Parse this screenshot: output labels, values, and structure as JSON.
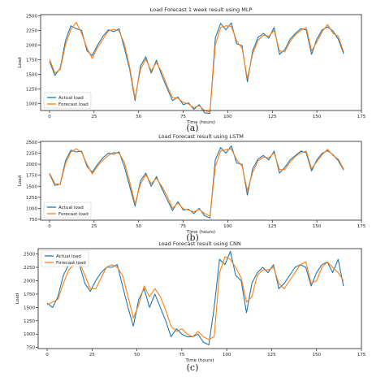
{
  "chart_data": [
    {
      "type": "line",
      "title": "Load Forecast 1 week result using MLP",
      "xlabel": "Time (hours)",
      "ylabel": "Load",
      "caption": "(a)",
      "xlim": [
        -5,
        175
      ],
      "ylim": [
        880,
        2520
      ],
      "xticks": [
        0,
        25,
        50,
        75,
        100,
        125,
        150,
        175
      ],
      "yticks": [
        1000,
        1250,
        1500,
        1750,
        2000,
        2250,
        2500
      ],
      "legend": "lower-left",
      "x": [
        0,
        3,
        6,
        9,
        12,
        15,
        18,
        21,
        24,
        27,
        30,
        33,
        36,
        39,
        42,
        45,
        48,
        51,
        54,
        57,
        60,
        63,
        66,
        69,
        72,
        75,
        78,
        81,
        84,
        87,
        90,
        93,
        96,
        99,
        102,
        105,
        108,
        111,
        114,
        117,
        120,
        123,
        126,
        129,
        132,
        135,
        138,
        141,
        144,
        147,
        150,
        153,
        156,
        159,
        162,
        165
      ],
      "series": [
        {
          "name": "Actual load",
          "color": "#1f77b4",
          "values": [
            1720,
            1480,
            1600,
            2080,
            2330,
            2280,
            2250,
            1900,
            1820,
            2000,
            2150,
            2260,
            2230,
            2280,
            1950,
            1580,
            1050,
            1640,
            1800,
            1520,
            1740,
            1480,
            1260,
            1050,
            1110,
            980,
            1010,
            900,
            980,
            840,
            830,
            2120,
            2370,
            2260,
            2380,
            2020,
            1990,
            1370,
            1900,
            2130,
            2200,
            2120,
            2300,
            1840,
            1920,
            2100,
            2200,
            2280,
            2260,
            1840,
            2100,
            2260,
            2310,
            2240,
            2100,
            1850
          ]
        },
        {
          "name": "Forecast load",
          "color": "#ff7f0e",
          "values": [
            1760,
            1520,
            1580,
            2010,
            2270,
            2390,
            2200,
            1950,
            1770,
            1960,
            2100,
            2240,
            2270,
            2240,
            2020,
            1620,
            1090,
            1580,
            1760,
            1560,
            1700,
            1540,
            1300,
            1100,
            1090,
            1020,
            990,
            930,
            960,
            880,
            850,
            2000,
            2300,
            2330,
            2320,
            2070,
            1950,
            1430,
            1850,
            2080,
            2170,
            2150,
            2250,
            1900,
            1880,
            2060,
            2180,
            2250,
            2300,
            1900,
            2050,
            2230,
            2350,
            2200,
            2150,
            1880
          ]
        }
      ]
    },
    {
      "type": "line",
      "title": "Load Forecast result using LSTM",
      "xlabel": "Time (hours)",
      "ylabel": "Load",
      "caption": "(b)",
      "xlim": [
        -5,
        175
      ],
      "ylim": [
        730,
        2520
      ],
      "xticks": [
        0,
        25,
        50,
        75,
        100,
        125,
        150,
        175
      ],
      "yticks": [
        750,
        1000,
        1250,
        1500,
        1750,
        2000,
        2250,
        2500
      ],
      "legend": "lower-left",
      "x": [
        0,
        3,
        6,
        9,
        12,
        15,
        18,
        21,
        24,
        27,
        30,
        33,
        36,
        39,
        42,
        45,
        48,
        51,
        54,
        57,
        60,
        63,
        66,
        69,
        72,
        75,
        78,
        81,
        84,
        87,
        90,
        93,
        96,
        99,
        102,
        105,
        108,
        111,
        114,
        117,
        120,
        123,
        126,
        129,
        132,
        135,
        138,
        141,
        144,
        147,
        150,
        153,
        156,
        159,
        162,
        165
      ],
      "series": [
        {
          "name": "Actual load",
          "color": "#1f77b4",
          "values": [
            1780,
            1520,
            1550,
            2080,
            2320,
            2280,
            2300,
            1950,
            1820,
            2000,
            2150,
            2250,
            2230,
            2280,
            1950,
            1500,
            1050,
            1620,
            1800,
            1500,
            1720,
            1450,
            1200,
            950,
            1150,
            960,
            980,
            880,
            1000,
            830,
            780,
            2100,
            2380,
            2250,
            2420,
            2030,
            2000,
            1300,
            1900,
            2120,
            2200,
            2100,
            2300,
            1800,
            1930,
            2100,
            2200,
            2300,
            2260,
            1850,
            2100,
            2250,
            2310,
            2220,
            2080,
            1870
          ]
        },
        {
          "name": "Forecast load",
          "color": "#ff7f0e",
          "values": [
            1800,
            1560,
            1540,
            2020,
            2280,
            2350,
            2270,
            2000,
            1780,
            1960,
            2100,
            2200,
            2270,
            2250,
            2050,
            1600,
            1100,
            1550,
            1760,
            1560,
            1680,
            1500,
            1280,
            1000,
            1120,
            990,
            960,
            920,
            980,
            880,
            820,
            1950,
            2300,
            2330,
            2350,
            2100,
            1960,
            1400,
            1820,
            2080,
            2160,
            2150,
            2260,
            1880,
            1880,
            2050,
            2180,
            2260,
            2300,
            1900,
            2060,
            2220,
            2340,
            2200,
            2120,
            1890
          ]
        }
      ]
    },
    {
      "type": "line",
      "title": "Load Forecast result using CNN",
      "xlabel": "Time (hours)",
      "ylabel": "Load",
      "caption": "(c)",
      "xlim": [
        -5,
        175
      ],
      "ylim": [
        730,
        2600
      ],
      "xticks": [
        0,
        25,
        50,
        75,
        100,
        125,
        150,
        175
      ],
      "yticks": [
        750,
        1000,
        1250,
        1500,
        1750,
        2000,
        2250,
        2500
      ],
      "legend": "upper-left",
      "x": [
        0,
        3,
        6,
        9,
        12,
        15,
        18,
        21,
        24,
        27,
        30,
        33,
        36,
        39,
        42,
        45,
        48,
        51,
        54,
        57,
        60,
        63,
        66,
        69,
        72,
        75,
        78,
        81,
        84,
        87,
        90,
        93,
        96,
        99,
        102,
        105,
        108,
        111,
        114,
        117,
        120,
        123,
        126,
        129,
        132,
        135,
        138,
        141,
        144,
        147,
        150,
        153,
        156,
        159,
        162,
        165
      ],
      "series": [
        {
          "name": "Actual load",
          "color": "#1f77b4",
          "values": [
            1580,
            1500,
            1700,
            2100,
            2300,
            2350,
            2300,
            1950,
            1800,
            2000,
            2150,
            2250,
            2250,
            2300,
            1900,
            1500,
            1150,
            1650,
            1850,
            1500,
            1750,
            1500,
            1250,
            950,
            1100,
            1000,
            950,
            950,
            1000,
            850,
            800,
            1500,
            2400,
            2300,
            2550,
            2100,
            2000,
            1400,
            1950,
            2150,
            2250,
            2150,
            2300,
            1850,
            1950,
            2100,
            2250,
            2300,
            2250,
            1900,
            2150,
            2300,
            2350,
            2150,
            2400,
            1900
          ]
        },
        {
          "name": "Forecast load",
          "color": "#ff7f0e",
          "values": [
            1550,
            1600,
            1650,
            1950,
            2200,
            2300,
            2350,
            2100,
            1850,
            1850,
            2050,
            2250,
            2300,
            2250,
            2100,
            1700,
            1300,
            1550,
            1900,
            1700,
            1850,
            1700,
            1450,
            1150,
            1050,
            1100,
            1000,
            950,
            1050,
            950,
            900,
            950,
            2150,
            2450,
            2400,
            2250,
            2050,
            1600,
            1700,
            2100,
            2200,
            2200,
            2250,
            1950,
            1850,
            2000,
            2150,
            2300,
            2350,
            1950,
            2000,
            2250,
            2350,
            2250,
            2150,
            2000
          ]
        }
      ]
    }
  ]
}
